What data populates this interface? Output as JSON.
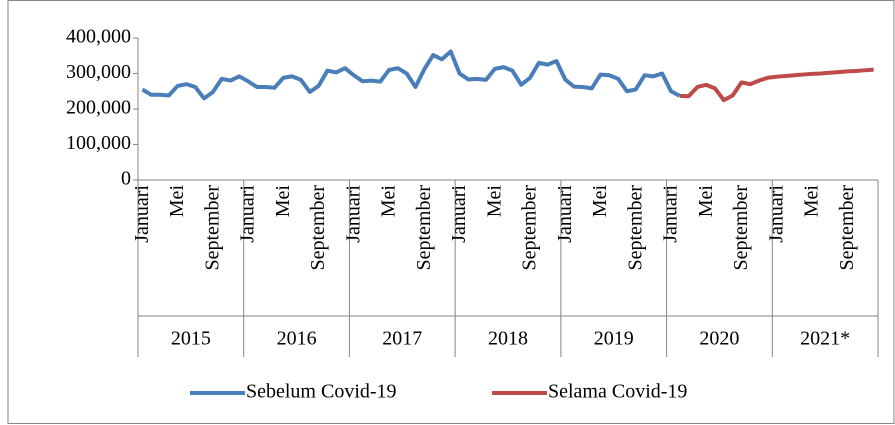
{
  "chart_data": {
    "type": "line",
    "categories": [
      "Januari",
      null,
      null,
      null,
      "Mei",
      null,
      null,
      null,
      "September",
      null,
      null,
      null,
      "Januari",
      null,
      null,
      null,
      "Mei",
      null,
      null,
      null,
      "September",
      null,
      null,
      null,
      "Januari",
      null,
      null,
      null,
      "Mei",
      null,
      null,
      null,
      "September",
      null,
      null,
      null,
      "Januari",
      null,
      null,
      null,
      "Mei",
      null,
      null,
      null,
      "September",
      null,
      null,
      null,
      "Januari",
      null,
      null,
      null,
      "Mei",
      null,
      null,
      null,
      "September",
      null,
      null,
      null,
      "Januari",
      null,
      null,
      null,
      "Mei",
      null,
      null,
      null,
      "September",
      null,
      null,
      null,
      "Januari",
      null,
      null,
      null,
      "Mei",
      null,
      null,
      null,
      "September",
      null,
      null,
      null
    ],
    "category_groups": [
      "2015",
      "2016",
      "2017",
      "2018",
      "2019",
      "2020",
      "2021*"
    ],
    "series": [
      {
        "name": "Sebelum Covid-19",
        "color": "#4a7ebb",
        "values": [
          255000,
          240000,
          240000,
          238000,
          265000,
          270000,
          262000,
          230000,
          248000,
          285000,
          280000,
          292000,
          278000,
          262000,
          262000,
          260000,
          288000,
          292000,
          282000,
          248000,
          265000,
          308000,
          303000,
          315000,
          295000,
          278000,
          280000,
          277000,
          310000,
          315000,
          300000,
          262000,
          312000,
          352000,
          340000,
          362000,
          300000,
          283000,
          285000,
          282000,
          313000,
          318000,
          308000,
          268000,
          288000,
          330000,
          325000,
          335000,
          283000,
          263000,
          262000,
          258000,
          297000,
          295000,
          285000,
          250000,
          255000,
          295000,
          292000,
          300000,
          250000,
          237000,
          null,
          null,
          null,
          null,
          null,
          null,
          null,
          null,
          null,
          null,
          null,
          null,
          null,
          null,
          null,
          null,
          null,
          null,
          null,
          null,
          null,
          null
        ]
      },
      {
        "name": "Selama Covid-19",
        "color": "#be4b48",
        "values": [
          null,
          null,
          null,
          null,
          null,
          null,
          null,
          null,
          null,
          null,
          null,
          null,
          null,
          null,
          null,
          null,
          null,
          null,
          null,
          null,
          null,
          null,
          null,
          null,
          null,
          null,
          null,
          null,
          null,
          null,
          null,
          null,
          null,
          null,
          null,
          null,
          null,
          null,
          null,
          null,
          null,
          null,
          null,
          null,
          null,
          null,
          null,
          null,
          null,
          null,
          null,
          null,
          null,
          null,
          null,
          null,
          null,
          null,
          null,
          null,
          null,
          237000,
          236000,
          262000,
          268000,
          258000,
          225000,
          238000,
          275000,
          270000,
          280000,
          288000,
          291000,
          293000,
          295000,
          297000,
          299000,
          300000,
          302000,
          304000,
          306000,
          307000,
          309000,
          311000
        ]
      }
    ],
    "ylim": [
      0,
      400000
    ],
    "yticks": [
      0,
      {
        "value": 100000,
        "label": "100,000"
      },
      {
        "value": 200000,
        "label": "200,000"
      },
      {
        "value": 300000,
        "label": "300,000"
      },
      {
        "value": 400000,
        "label": "400,000"
      }
    ],
    "legend": "bottom"
  }
}
